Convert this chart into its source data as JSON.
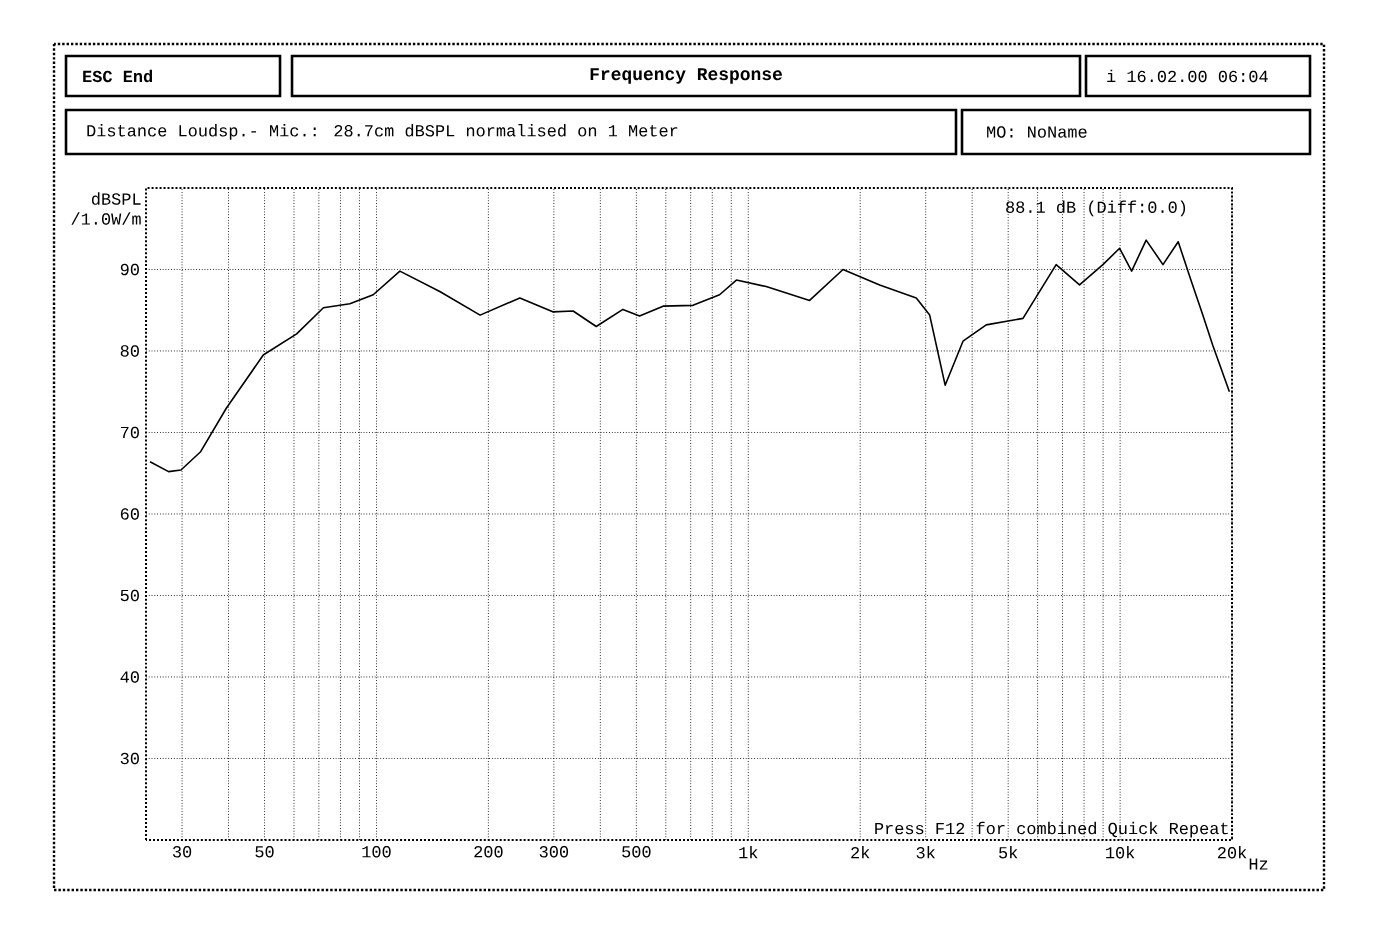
{
  "chart_data": {
    "type": "line",
    "title": "Frequency Response",
    "subtitle": "Distance Loudsp.- Mic.: 28.7cm dBSPL normalised on 1 Meter",
    "ylabel": "dBSPL /1.0W/m",
    "annotations": [
      "ESC End",
      "i 16.02.00 06:04",
      "MO: NoName",
      "88.1 dB (Diff:0.0)",
      "Press F12 for combined Quick Repeat"
    ],
    "log": "x",
    "grid": true,
    "marker": "none",
    "line_style": "solid",
    "xlim": [
      24,
      20000
    ],
    "ylim": [
      20,
      100
    ],
    "xticks": [
      30,
      {
        "value": 40,
        "label": null
      },
      50,
      {
        "value": 60,
        "label": null
      },
      {
        "value": 70,
        "label": null
      },
      {
        "value": 80,
        "label": null
      },
      {
        "value": 90,
        "label": null
      },
      100,
      200,
      300,
      {
        "value": 400,
        "label": null
      },
      500,
      {
        "value": 600,
        "label": null
      },
      {
        "value": 700,
        "label": null
      },
      {
        "value": 800,
        "label": null
      },
      {
        "value": 900,
        "label": null
      },
      {
        "value": 1000,
        "label": "1k"
      },
      {
        "value": 2000,
        "label": "2k"
      },
      {
        "value": 3000,
        "label": "3k"
      },
      {
        "value": 4000,
        "label": null
      },
      {
        "value": 5000,
        "label": "5k"
      },
      {
        "value": 6000,
        "label": null
      },
      {
        "value": 7000,
        "label": null
      },
      {
        "value": 8000,
        "label": null
      },
      {
        "value": 9000,
        "label": null
      },
      {
        "value": 10000,
        "label": "10k"
      },
      {
        "value": 20000,
        "label": "20k"
      }
    ],
    "xlabel": "Hz",
    "yticks": [
      30,
      40,
      50,
      60,
      70,
      80,
      90
    ],
    "series": [
      {
        "color": "#000000",
        "x": [
          24.6,
          27.6,
          29.8,
          33.6,
          39.5,
          49.6,
          61,
          72,
          84.8,
          98,
          115.6,
          148,
          190,
          243,
          298,
          338,
          390,
          460,
          510,
          590,
          710,
          837,
          929,
          1117,
          1462,
          1798,
          2256,
          2830,
          3075,
          3384,
          3780,
          4364,
          5480,
          6730,
          7780,
          8990,
          9970,
          10740,
          11750,
          13040,
          14330,
          15560,
          16690,
          17750,
          19680
        ],
        "values": [
          66.4,
          65.2,
          65.4,
          67.6,
          73,
          79.5,
          82.1,
          85.3,
          85.8,
          86.9,
          89.8,
          87.3,
          84.4,
          86.5,
          84.8,
          84.9,
          83,
          85.1,
          84.3,
          85.5,
          85.6,
          86.9,
          88.7,
          87.9,
          86.2,
          90,
          88.1,
          86.5,
          84.4,
          75.8,
          81.2,
          83.2,
          84,
          90.6,
          88.1,
          90.6,
          92.6,
          89.8,
          93.6,
          90.6,
          93.4,
          88.5,
          84.4,
          80.7,
          75
        ]
      }
    ]
  }
}
